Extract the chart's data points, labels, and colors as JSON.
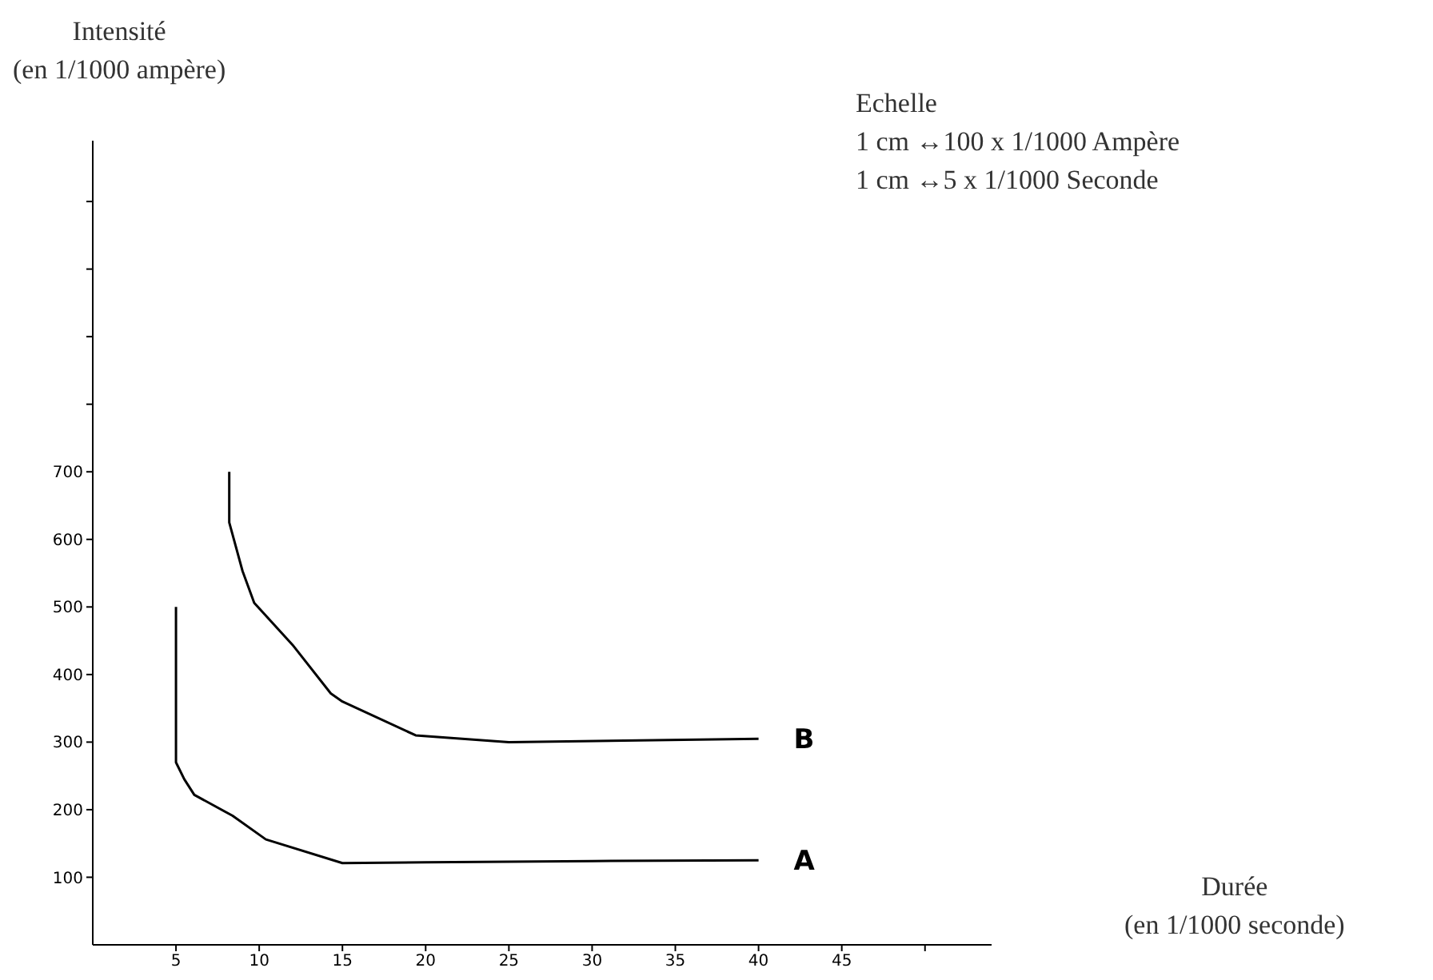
{
  "chart_data": {
    "type": "line",
    "ylabel": "Intensité\n(en 1/1000 ampère)",
    "xlabel": "Durée\n(en 1/1000 seconde)",
    "annotations": [
      "Echelle\n1 cm ↔100 x 1/1000 Ampère\n1 cm ↔5 x 1/1000 Seconde"
    ],
    "xlim": [
      0,
      54
    ],
    "xticks": [
      5,
      10,
      15,
      20,
      25,
      30,
      35,
      40,
      45,
      {
        "value": 50,
        "label": null
      }
    ],
    "ylim": [
      0,
      1190
    ],
    "yticks": [
      100,
      200,
      300,
      400,
      500,
      600,
      700,
      {
        "value": 800,
        "label": null
      },
      {
        "value": 900,
        "label": null
      },
      {
        "value": 1000,
        "label": null
      },
      {
        "value": 1100,
        "label": null
      }
    ],
    "series": [
      {
        "name": "A",
        "color": "#000000",
        "x": [
          5,
          5,
          5.5,
          6.1,
          8.4,
          10.4,
          15,
          20,
          30,
          40
        ],
        "values": [
          500,
          270,
          245,
          222,
          191,
          156,
          121,
          122,
          124,
          125
        ]
      },
      {
        "name": "B",
        "color": "#000000",
        "x": [
          8.2,
          8.2,
          9,
          9.7,
          12,
          14.3,
          15,
          19.4,
          25,
          40
        ],
        "values": [
          700,
          625,
          553,
          506,
          444,
          372,
          360,
          310,
          300,
          305
        ]
      }
    ]
  }
}
